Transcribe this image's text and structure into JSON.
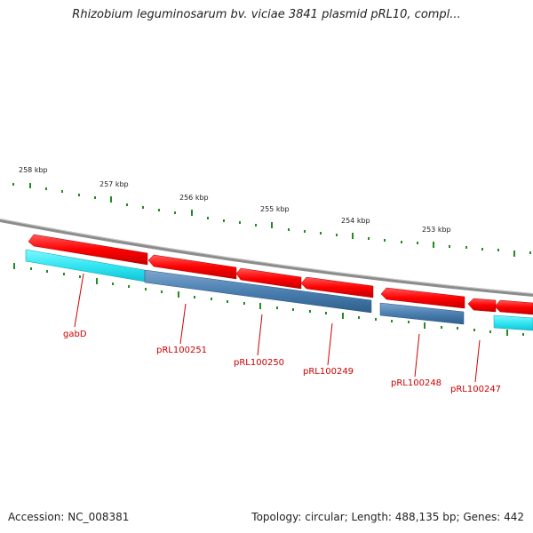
{
  "title": "Rhizobium leguminosarum bv. viciae 3841 plasmid pRL10, compl...",
  "footer": {
    "accession": "Accession: NC_008381",
    "summary": "Topology: circular; Length: 488,135 bp; Genes: 442"
  },
  "colors": {
    "backbone": "#8c8c8c",
    "forward_cds": "#ff0000",
    "reverse_cds": "#ff0000",
    "gene_dark": "#4a7fb0",
    "gene_light": "#33e6f2",
    "tick": "#228b22",
    "label": "#cc0000"
  },
  "ruler": [
    {
      "label": "258 kbp"
    },
    {
      "label": "257 kbp"
    },
    {
      "label": "256 kbp"
    },
    {
      "label": "255 kbp"
    },
    {
      "label": "254 kbp"
    },
    {
      "label": "253 kbp"
    }
  ],
  "genes": [
    {
      "label": "gabD",
      "kind": "light"
    },
    {
      "label": "pRL100251",
      "kind": "dark"
    },
    {
      "label": "pRL100250",
      "kind": "dark"
    },
    {
      "label": "pRL100249",
      "kind": "dark"
    },
    {
      "label": "pRL100248",
      "kind": "dark"
    },
    {
      "label": "pRL100247",
      "kind": "light"
    }
  ]
}
